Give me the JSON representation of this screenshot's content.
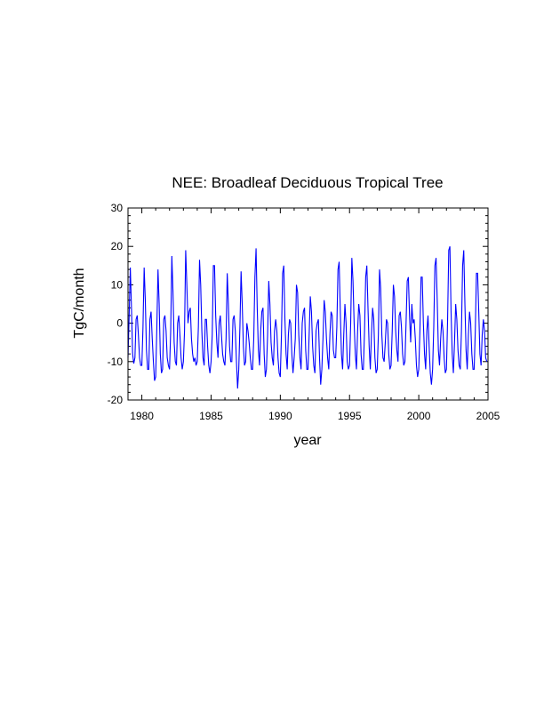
{
  "chart_data": {
    "type": "line",
    "title": "NEE: Broadleaf Deciduous Tropical Tree",
    "xlabel": "year",
    "ylabel": "TgC/month",
    "xlim": [
      1979,
      2005
    ],
    "ylim": [
      -20,
      30
    ],
    "x_ticks": [
      1980,
      1985,
      1990,
      1995,
      2000,
      2005
    ],
    "y_ticks": [
      -20,
      -10,
      0,
      10,
      20,
      30
    ],
    "grid": false,
    "colors": {
      "series": "#0000ff",
      "axes": "#000000"
    },
    "series": [
      {
        "x_start": 1979.0,
        "x_step": 0.08333,
        "values": [
          -9,
          2,
          14.5,
          4,
          -8,
          -10.5,
          -9,
          1,
          2,
          -3,
          -9,
          -11,
          -11,
          -1,
          14.5,
          6,
          -7,
          -12,
          -12,
          1,
          3,
          -4,
          -10,
          -15,
          -14,
          -1,
          14,
          5,
          -8,
          -13,
          -12,
          1,
          2,
          -2,
          -9,
          -11,
          -12,
          -2,
          17.5,
          8,
          -5,
          -10,
          -11,
          0,
          2,
          -3,
          -9,
          -12,
          -10,
          -2,
          19,
          10,
          0,
          3,
          4,
          -4,
          -8,
          -10,
          -9,
          -11,
          -10,
          -1,
          16.5,
          10,
          -2,
          -9,
          -11,
          1,
          1,
          -6,
          -11,
          -13,
          -10,
          -3,
          15,
          15,
          2,
          -5,
          -9,
          0,
          2,
          -3,
          -8,
          -10,
          -11,
          -4,
          13,
          5,
          -6,
          -10,
          -10,
          1,
          2,
          -2,
          -10,
          -17,
          -12,
          -1,
          13.5,
          5,
          -6,
          -11,
          -10,
          0,
          -2,
          -5,
          -9,
          -12,
          -12,
          -4,
          12,
          19.5,
          4,
          -7,
          -11,
          -2,
          3,
          4,
          -8,
          -14,
          -12,
          -3,
          11,
          5,
          -5,
          -9,
          -11,
          -2,
          1,
          -2,
          -9,
          -13,
          -14,
          -3,
          13,
          15,
          1,
          -8,
          -12,
          -3,
          1,
          0,
          -8,
          -13,
          -9,
          -4,
          10,
          8,
          -3,
          -9,
          -12,
          0,
          3,
          4,
          -7,
          -12,
          -12,
          -3,
          7,
          3,
          -6,
          -11,
          -13,
          -2,
          0,
          1,
          -9,
          -16,
          -12,
          -4,
          6,
          3,
          -4,
          -9,
          -12,
          -3,
          3,
          2,
          -7,
          -9,
          -9,
          -1,
          14,
          16,
          3,
          -8,
          -12,
          -3,
          5,
          0,
          -10,
          -12,
          -11,
          0,
          17,
          11,
          0,
          -8,
          -12,
          -2,
          5,
          2,
          -8,
          -12,
          -12,
          -2,
          12,
          15,
          4,
          -6,
          -12,
          -3,
          4,
          1,
          -9,
          -13,
          -12,
          -3,
          14,
          9,
          -3,
          -9,
          -10,
          -5,
          1,
          0,
          -8,
          -12,
          -11,
          -2,
          10,
          7,
          -2,
          -7,
          -10,
          2,
          3,
          -1,
          -8,
          -11,
          -10,
          0,
          11,
          12,
          2,
          -5,
          5,
          0,
          1,
          -4,
          -11,
          -14,
          -12,
          -2,
          12,
          12,
          0,
          -8,
          -12,
          -2,
          2,
          -6,
          -13,
          -16,
          -12,
          -1,
          15,
          17,
          6,
          -7,
          -11,
          -4,
          1,
          -2,
          -9,
          -13,
          -12,
          1,
          19,
          20,
          3,
          -8,
          -13,
          -5,
          5,
          1,
          -7,
          -11,
          -12,
          -2,
          15,
          19,
          5,
          -7,
          -12,
          -3,
          3,
          0,
          -8,
          -12,
          -12,
          -2,
          13,
          13,
          3,
          -8,
          -11,
          -3,
          1,
          -2,
          -9,
          -10
        ]
      }
    ]
  }
}
